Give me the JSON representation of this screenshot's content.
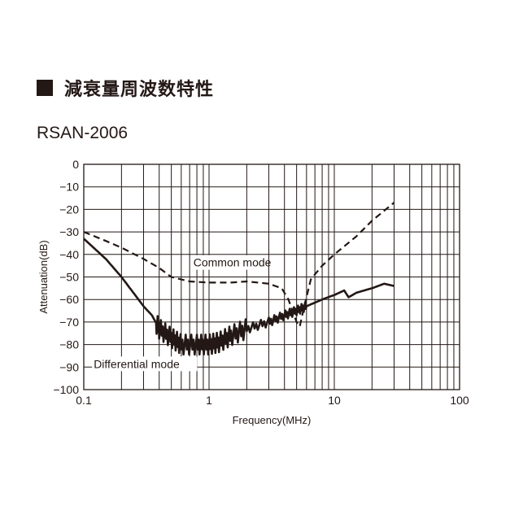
{
  "header": {
    "title": "減衰量周波数特性",
    "model": "RSAN-2006"
  },
  "chart_data": {
    "type": "line",
    "title": "減衰量周波数特性",
    "subtitle": "RSAN-2006",
    "xlabel": "Frequency(MHz)",
    "ylabel": "Attenuation(dB)",
    "xscale": "log",
    "xlim": [
      0.1,
      100
    ],
    "ylim": [
      -100,
      0
    ],
    "xticks": [
      "0.1",
      "1",
      "10",
      "100"
    ],
    "yticks": [
      "0",
      "−10",
      "−20",
      "−30",
      "−40",
      "−50",
      "−60",
      "−70",
      "−80",
      "−90",
      "−100"
    ],
    "grid": true,
    "series": [
      {
        "name": "Common mode",
        "style": "dashed",
        "x": [
          0.1,
          0.15,
          0.2,
          0.3,
          0.4,
          0.5,
          0.7,
          1.0,
          1.5,
          2.0,
          3.0,
          3.8,
          4.3,
          4.7,
          5.0,
          5.3,
          5.7,
          6.5,
          8,
          10,
          15,
          20,
          30
        ],
        "y": [
          -30,
          -34,
          -37,
          -42,
          -46,
          -50,
          -52,
          -52.5,
          -52.5,
          -52,
          -53,
          -55,
          -60,
          -66,
          -70,
          -72,
          -64,
          -51,
          -45,
          -40,
          -32,
          -25,
          -17
        ]
      },
      {
        "name": "Differential mode",
        "style": "solid",
        "x": [
          0.1,
          0.15,
          0.2,
          0.3,
          0.35,
          0.4,
          0.5,
          0.6,
          0.8,
          1.0,
          1.2,
          1.5,
          2.0,
          3.0,
          4.0,
          5.0,
          6.0,
          8.0,
          10,
          12,
          13,
          15,
          20,
          25,
          30
        ],
        "y": [
          -33,
          -42,
          -50,
          -63,
          -67,
          -73,
          -77,
          -80,
          -80,
          -80,
          -79,
          -76,
          -73,
          -70,
          -67,
          -65,
          -63,
          -60,
          -58,
          -56,
          -59,
          -57,
          -55,
          -53,
          -54
        ]
      }
    ],
    "annotations": [
      {
        "text": "Common mode",
        "x": 0.75,
        "y": -45
      },
      {
        "text": "Differential mode",
        "x": 0.12,
        "y": -90
      }
    ]
  },
  "colors": {
    "ink": "#231815",
    "background": "#ffffff"
  }
}
